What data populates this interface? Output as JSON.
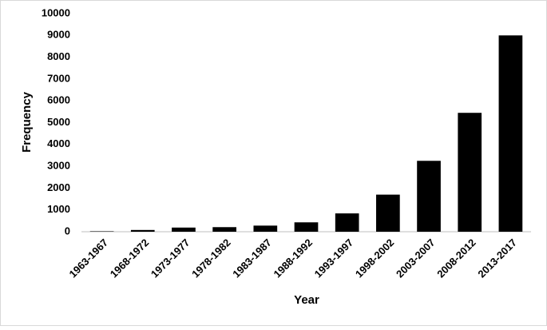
{
  "chart_data": {
    "type": "bar",
    "x_label": "Year",
    "y_label": "Frequency",
    "categories": [
      "1963-1967",
      "1968-1972",
      "1973-1977",
      "1978-1982",
      "1983-1987",
      "1988-1992",
      "1993-1997",
      "1998-2002",
      "2003-2007",
      "2008-2012",
      "2013-2017"
    ],
    "values": [
      20,
      80,
      190,
      210,
      280,
      430,
      840,
      1700,
      3250,
      5450,
      9000
    ],
    "color": "#000000",
    "ylim": [
      0,
      10000
    ],
    "yticks": [
      0,
      1000,
      2000,
      3000,
      4000,
      5000,
      6000,
      7000,
      8000,
      9000,
      10000
    ],
    "grid": false
  }
}
